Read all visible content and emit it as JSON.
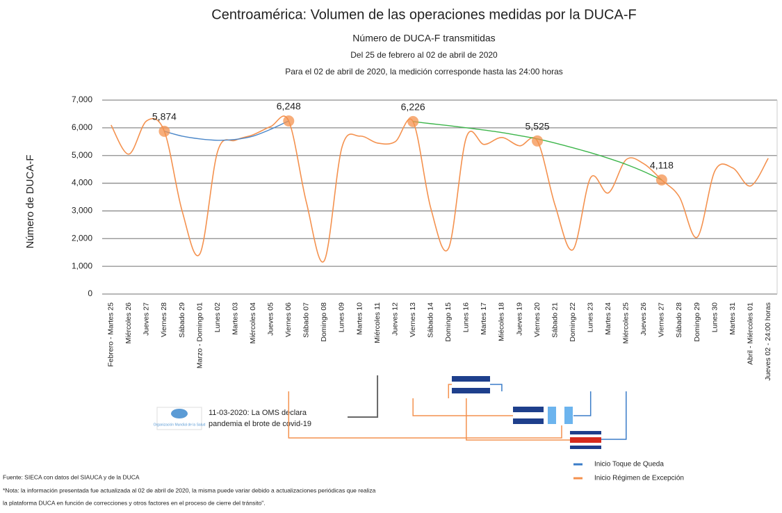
{
  "chart_data": {
    "type": "line",
    "title": "Centroamérica: Volumen de las operaciones medidas por la DUCA-F",
    "subtitle": "Número de DUCA-F transmitidas",
    "subtitle2": "Del 25 de febrero al 02 de abril de 2020",
    "subtitle3": "Para el 02 de abril de 2020, la medición corresponde hasta las 24:00 horas",
    "y_label": "Número de  DUCA-F",
    "categories": [
      "Febrero - Martes 25",
      "Miércoles 26",
      "Jueves 27",
      "Viernes 28",
      "Sábado 29",
      "Marzo - Domingo 01",
      "Lunes 02",
      "Martes 03",
      "Miércoles 04",
      "Jueves 05",
      "Viernes 06",
      "Sábado 07",
      "Domingo 08",
      "Lunes 09",
      "Martes 10",
      "Miércoles 11",
      "Jueves 12",
      "Viernes 13",
      "Sábado 14",
      "Domingo 15",
      "Lunes 16",
      "Martes 17",
      "Miécoles 18",
      "Jueves 19",
      "Viernes 20",
      "Sábado 21",
      "Domingo 22",
      "Lunes 23",
      "Martes 24",
      "Miércoles 25",
      "Jueves 26",
      "Viernes 27",
      "Sábado 28",
      "Domingo 29",
      "Lunes 30",
      "Martes 31",
      "Abril - Miércoles 01",
      "Jueves 02 - 24:00 horas"
    ],
    "series": [
      {
        "color": "#f4914e",
        "values": [
          6100,
          5050,
          6250,
          5874,
          3000,
          1450,
          5150,
          5550,
          5750,
          6050,
          6248,
          3300,
          1200,
          5300,
          5700,
          5450,
          5500,
          6226,
          3100,
          1650,
          5650,
          5400,
          5650,
          5350,
          5525,
          3200,
          1600,
          4200,
          3650,
          4850,
          4700,
          4118,
          3500,
          2050,
          4450,
          4550,
          3900,
          4900
        ],
        "value_labels": [
          null,
          null,
          null,
          "5,874",
          null,
          null,
          null,
          null,
          null,
          null,
          "6,248",
          null,
          null,
          null,
          null,
          null,
          null,
          "6,226",
          null,
          null,
          null,
          null,
          null,
          null,
          "5,525",
          null,
          null,
          null,
          null,
          null,
          null,
          "4,118",
          null,
          null,
          null,
          null,
          null,
          null
        ]
      }
    ],
    "trendlines": [
      {
        "color": "#4a86c8",
        "values": [
          null,
          null,
          null,
          5874,
          5700,
          5600,
          5550,
          5580,
          5700,
          5950,
          6248,
          null,
          null,
          null,
          null,
          null,
          null,
          null,
          null,
          null,
          null,
          null,
          null,
          null,
          null,
          null,
          null,
          null,
          null,
          null,
          null,
          null,
          null,
          null,
          null,
          null,
          null,
          null
        ]
      },
      {
        "color": "#3cb54a",
        "values": [
          null,
          null,
          null,
          null,
          null,
          null,
          null,
          null,
          null,
          null,
          null,
          null,
          null,
          null,
          null,
          null,
          null,
          6226,
          6150,
          6080,
          6000,
          5920,
          5830,
          5720,
          5600,
          5450,
          5280,
          5100,
          4900,
          4680,
          4420,
          4118,
          null,
          null,
          null,
          null,
          null,
          null
        ]
      }
    ],
    "ylim": [
      0,
      7000
    ],
    "yticks": [
      0,
      {
        "value": 1000,
        "label": "1,000"
      },
      {
        "value": 2000,
        "label": "2,000"
      },
      {
        "value": 3000,
        "label": "3,000"
      },
      {
        "value": 4000,
        "label": "4,000"
      },
      {
        "value": 5000,
        "label": "5,000"
      },
      {
        "value": 6000,
        "label": "6,000"
      },
      {
        "value": 7000,
        "label": "7,000"
      }
    ],
    "grid": true,
    "annotation": "11-03-2020: La OMS declara",
    "annotation2": "pandemia el brote de covid-19",
    "logo_text": "Organización Mundial de la Salud",
    "legend": [
      {
        "name": "Inicio Toque de Queda",
        "color": "#3a7cc8"
      },
      {
        "name": "Inicio Régimen de Excepción",
        "color": "#f4914e"
      }
    ],
    "source": "Fuente: SIECA con datos del SIAUCA y de la DUCA",
    "note": "*Nota: la información presentada fue actualizada al 02 de abril de 2020, la misma puede variar debido a actualizaciones periódicas que realiza",
    "note2": "la plataforma DUCA en función de correcciones y otros factores en el proceso de cierre del tránsito\"."
  }
}
